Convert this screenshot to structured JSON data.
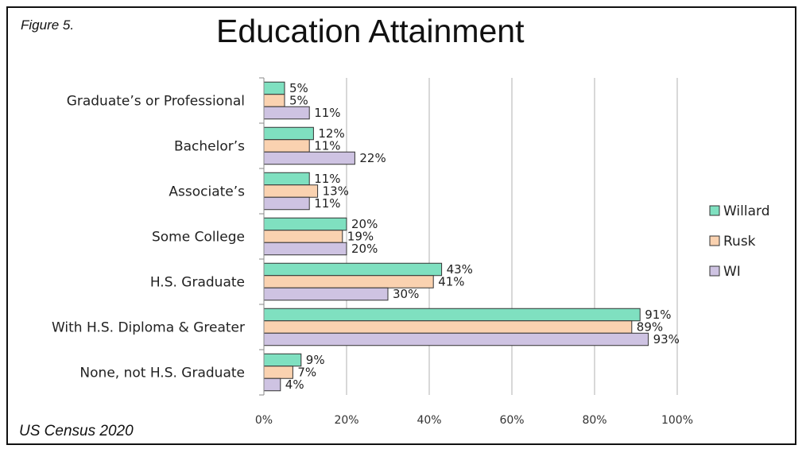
{
  "header": {
    "figure_label": "Figure  5.",
    "source": "US Census 2020"
  },
  "chart_data": {
    "type": "bar",
    "orientation": "horizontal",
    "title": "Education Attainment",
    "categories": [
      "Graduate’s or Professional",
      "Bachelor’s",
      "Associate’s",
      "Some College",
      "H.S. Graduate",
      "With H.S. Diploma & Greater",
      "None, not H.S. Graduate"
    ],
    "series": [
      {
        "name": "Willard",
        "color": "#7FE0C0",
        "values": [
          5,
          12,
          11,
          20,
          43,
          91,
          9
        ]
      },
      {
        "name": "Rusk",
        "color": "#FAD2B0",
        "values": [
          5,
          11,
          13,
          19,
          41,
          89,
          7
        ]
      },
      {
        "name": "WI",
        "color": "#CEC3E2",
        "values": [
          11,
          22,
          11,
          20,
          30,
          93,
          4
        ]
      }
    ],
    "xlim": [
      0,
      100
    ],
    "xticks": [
      "0%",
      "20%",
      "40%",
      "60%",
      "80%",
      "100%"
    ],
    "value_suffix": "%",
    "grid": true,
    "legend": "right"
  }
}
